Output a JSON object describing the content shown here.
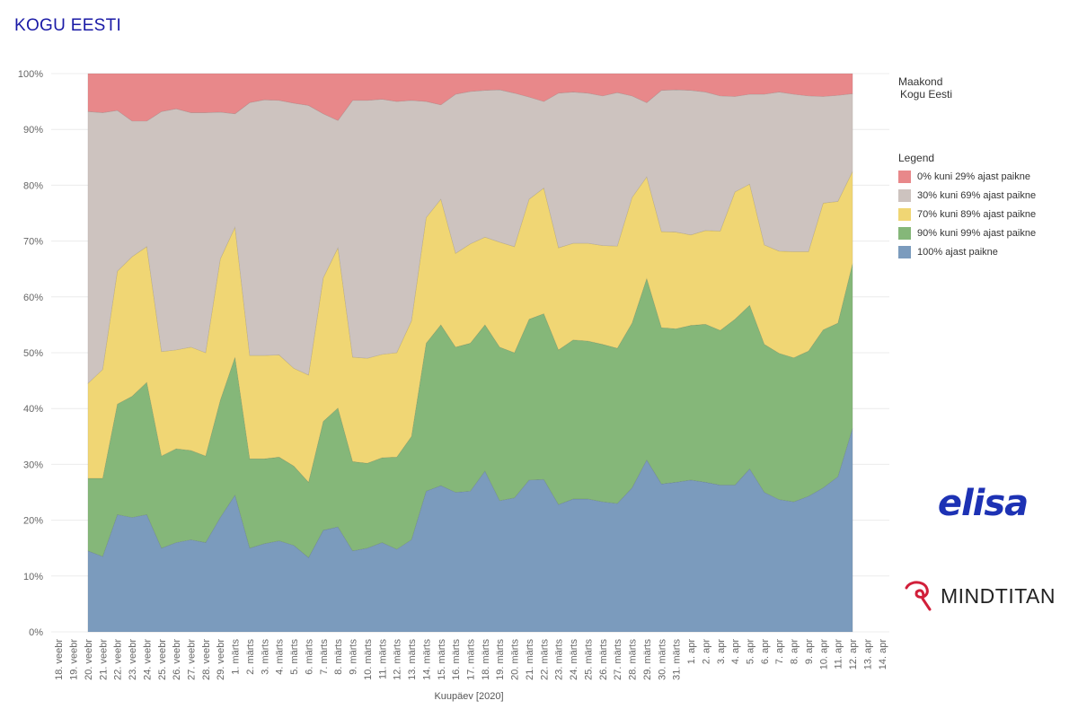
{
  "title": "KOGU EESTI",
  "maakond": {
    "label": "Maakond",
    "value": "Kogu Eesti"
  },
  "legend": {
    "title": "Legend",
    "items": [
      {
        "label": "0% kuni 29% ajast paikne",
        "color": "#e8888a"
      },
      {
        "label": "30% kuni 69% ajast paikne",
        "color": "#cdc3bf"
      },
      {
        "label": "70% kuni 89% ajast paikne",
        "color": "#f0d674"
      },
      {
        "label": "90% kuni 99% ajast paikne",
        "color": "#85b779"
      },
      {
        "label": "100% ajast paikne",
        "color": "#7b9bbd"
      }
    ]
  },
  "logos": {
    "elisa": "elisa",
    "mindtitan": "MINDTITAN"
  },
  "chart_data": {
    "type": "area",
    "stacked": true,
    "xlabel": "Kuupäev [2020]",
    "ylabel": "",
    "ylim": [
      0,
      100
    ],
    "y_ticks": [
      "0%",
      "10%",
      "20%",
      "30%",
      "40%",
      "50%",
      "60%",
      "70%",
      "80%",
      "90%",
      "100%"
    ],
    "grid": true,
    "legend_position": "right",
    "categories": [
      "18. veebr",
      "19. veebr",
      "20. veebr",
      "21. veebr",
      "22. veebr",
      "23. veebr",
      "24. veebr",
      "25. veebr",
      "26. veebr",
      "27. veebr",
      "28. veebr",
      "29. veebr",
      "1. märts",
      "2. märts",
      "3. märts",
      "4. märts",
      "5. märts",
      "6. märts",
      "7. märts",
      "8. märts",
      "9. märts",
      "10. märts",
      "11. märts",
      "12. märts",
      "13. märts",
      "14. märts",
      "15. märts",
      "16. märts",
      "17. märts",
      "18. märts",
      "19. märts",
      "20. märts",
      "21. märts",
      "22. märts",
      "23. märts",
      "24. märts",
      "25. märts",
      "26. märts",
      "27. märts",
      "28. märts",
      "29. märts",
      "30. märts",
      "31. märts",
      "1. apr",
      "2. apr",
      "3. apr",
      "4. apr",
      "5. apr",
      "6. apr",
      "7. apr",
      "8. apr",
      "9. apr",
      "10. apr",
      "11. apr",
      "12. apr",
      "13. apr",
      "14. apr"
    ],
    "data_start_index": 2,
    "data_end_index": 54,
    "series": [
      {
        "name": "100% ajast paikne",
        "color": "#7b9bbd",
        "values": [
          null,
          null,
          14.5,
          13.5,
          21,
          20.5,
          21,
          15,
          16,
          16.5,
          16,
          20.5,
          24.5,
          15,
          15.8,
          16.3,
          15.5,
          13.3,
          18.2,
          18.8,
          14.5,
          15,
          16,
          14.8,
          16.5,
          25.2,
          26.2,
          25,
          25.2,
          28.8,
          23.5,
          24,
          27.2,
          27.3,
          22.8,
          23.8,
          23.8,
          23.3,
          23,
          25.8,
          30.8,
          26.5,
          26.8,
          27.2,
          26.8,
          26.3,
          26.3,
          29.2,
          25,
          23.7,
          23.3,
          24.3,
          25.8,
          27.8,
          36.5,
          null,
          null
        ]
      },
      {
        "name": "90% kuni 99% ajast paikne",
        "color": "#85b779",
        "values": [
          null,
          null,
          13,
          14,
          19.8,
          21.7,
          23.7,
          16.5,
          16.8,
          16,
          15.5,
          21,
          24.7,
          16,
          15.2,
          15,
          14.2,
          13.5,
          19.5,
          21.3,
          16,
          15.2,
          15.2,
          16.5,
          18.5,
          26.5,
          28.8,
          26,
          26.5,
          26.2,
          27.5,
          26,
          28.8,
          29.7,
          27.7,
          28.5,
          28.3,
          28.2,
          27.8,
          29.5,
          32.5,
          28,
          27.5,
          27.7,
          28.3,
          27.7,
          29.7,
          29.3,
          26.5,
          26.2,
          25.8,
          26,
          28.3,
          27.5,
          29.5,
          null,
          null
        ]
      },
      {
        "name": "70% kuni 89% ajast paikne",
        "color": "#f0d674",
        "values": [
          null,
          null,
          17,
          19.5,
          23.8,
          25,
          24.3,
          18.7,
          17.7,
          18.5,
          18.5,
          25.3,
          23.3,
          18.5,
          18.5,
          18.3,
          17.5,
          19.2,
          25.7,
          28.7,
          18.7,
          18.8,
          18.5,
          18.7,
          20.7,
          22.5,
          22.5,
          16.8,
          17.8,
          15.7,
          18.8,
          19,
          21.5,
          22.5,
          18.3,
          17.3,
          17.5,
          17.7,
          18.3,
          22.5,
          18.2,
          17.2,
          17.3,
          16.2,
          16.8,
          17.8,
          22.8,
          21.7,
          17.8,
          18.3,
          19,
          17.8,
          22.7,
          21.8,
          16.5,
          null,
          null
        ]
      },
      {
        "name": "30% kuni 69% ajast paikne",
        "color": "#cdc3bf",
        "values": [
          null,
          null,
          48.7,
          46,
          28.8,
          24.3,
          22.5,
          43,
          43.2,
          42,
          43,
          26.3,
          20.3,
          45.3,
          45.8,
          45.6,
          47.5,
          48.3,
          29.4,
          22.8,
          46,
          46.2,
          45.7,
          45,
          39.5,
          20.8,
          16.9,
          28.5,
          27.3,
          26.3,
          27.3,
          27.5,
          18.3,
          15.5,
          27.7,
          27.1,
          26.9,
          26.8,
          27.5,
          18.2,
          13.3,
          25.3,
          25.5,
          25.9,
          24.8,
          24.2,
          17.1,
          16.1,
          27,
          28.5,
          28.2,
          27.9,
          19.1,
          19,
          13.9,
          null,
          null
        ]
      },
      {
        "name": "0% kuni 29% ajast paikne",
        "color": "#e8888a",
        "values": [
          null,
          null,
          6.8,
          7,
          6.6,
          8.5,
          8.5,
          6.8,
          6.3,
          7,
          7,
          6.9,
          7.2,
          5.2,
          4.7,
          4.8,
          5.3,
          5.7,
          7.2,
          8.4,
          4.8,
          4.8,
          4.6,
          5,
          4.8,
          5,
          5.6,
          3.7,
          3.2,
          3,
          2.9,
          3.5,
          4.2,
          5,
          3.5,
          3.3,
          3.5,
          4,
          3.4,
          4,
          5.2,
          3,
          2.9,
          3,
          3.3,
          4,
          4.1,
          3.7,
          3.7,
          3.8,
          3.7,
          4,
          4.1,
          3.9,
          3.6,
          null,
          null
        ]
      }
    ]
  }
}
